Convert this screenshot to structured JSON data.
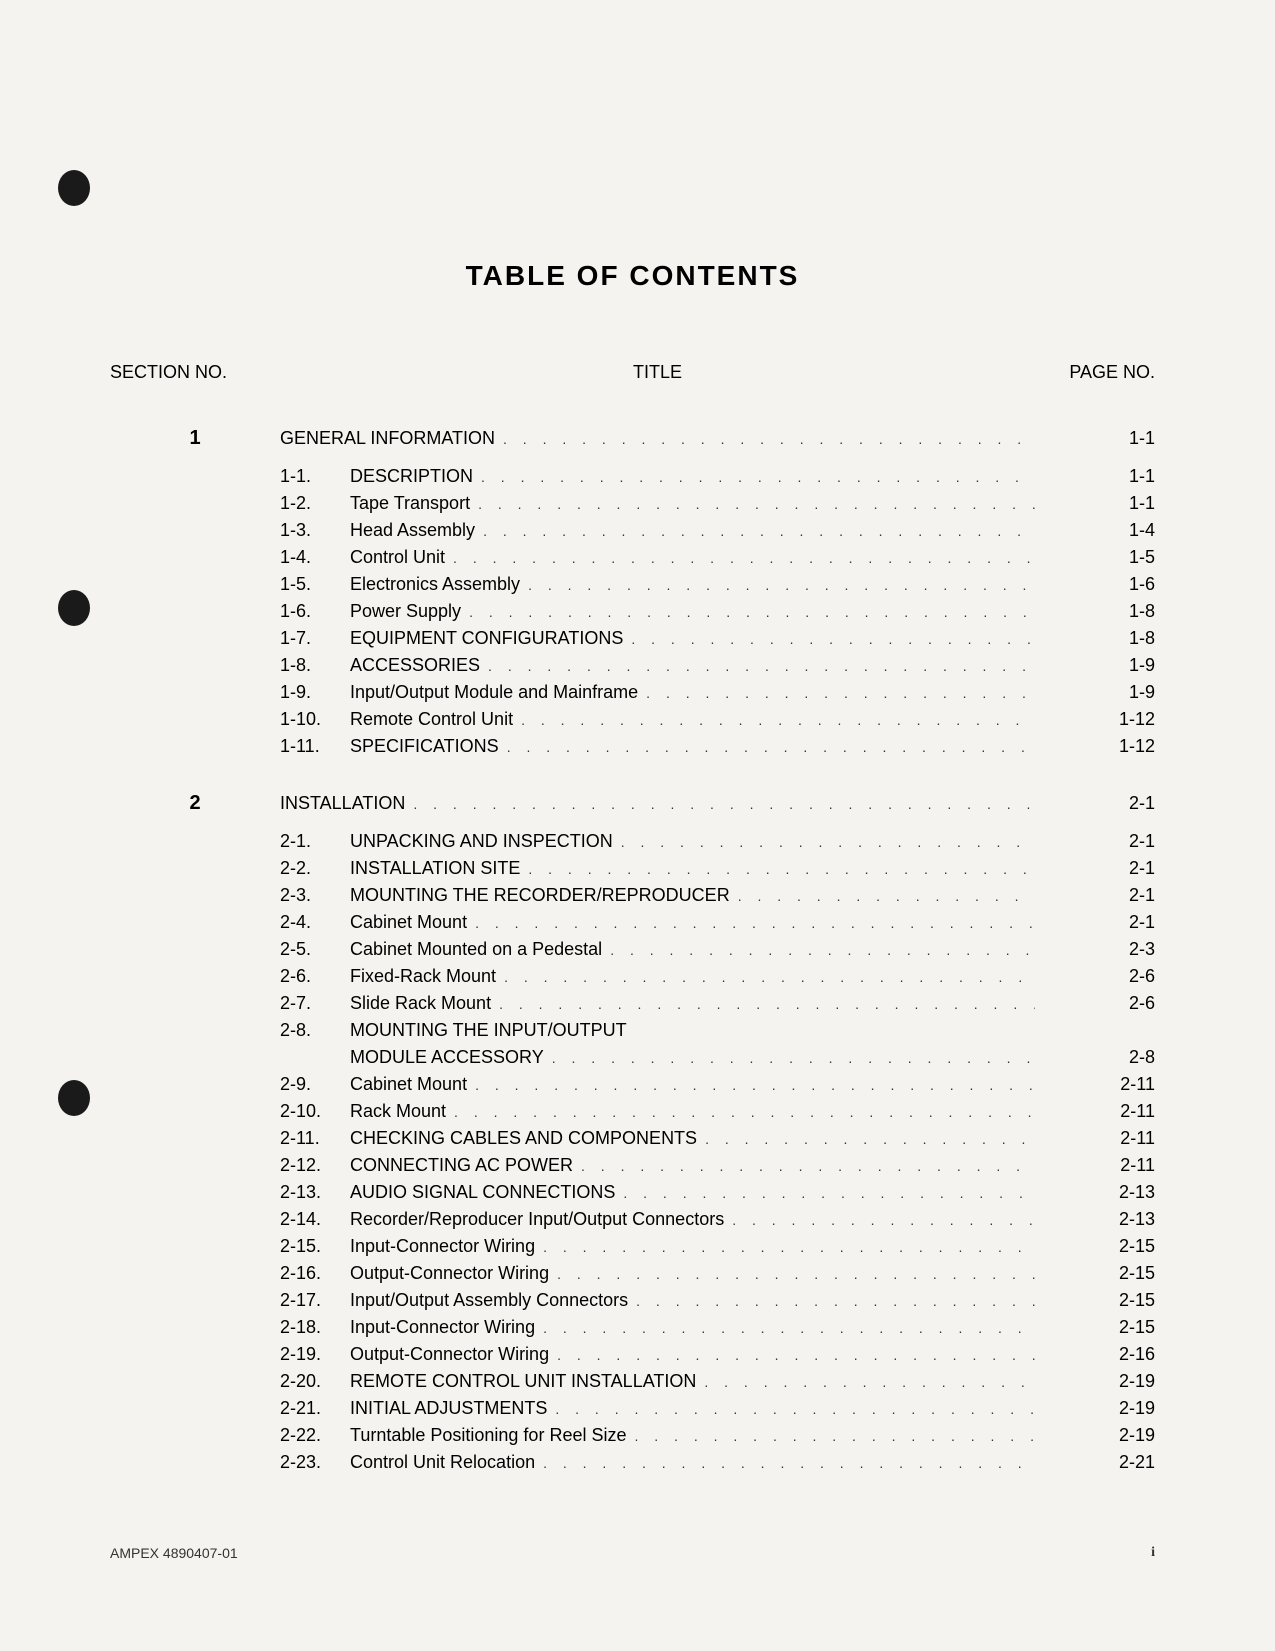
{
  "title": "TABLE OF CONTENTS",
  "headers": {
    "section": "SECTION NO.",
    "title": "TITLE",
    "page": "PAGE NO."
  },
  "sections": [
    {
      "num": "1",
      "title": "GENERAL INFORMATION",
      "page": "1-1",
      "subs": [
        {
          "num": "1-1.",
          "title": "DESCRIPTION",
          "page": "1-1"
        },
        {
          "num": "1-2.",
          "title": "Tape Transport",
          "page": "1-1"
        },
        {
          "num": "1-3.",
          "title": "Head Assembly",
          "page": "1-4"
        },
        {
          "num": "1-4.",
          "title": "Control Unit",
          "page": "1-5"
        },
        {
          "num": "1-5.",
          "title": "Electronics Assembly",
          "page": "1-6"
        },
        {
          "num": "1-6.",
          "title": "Power Supply",
          "page": "1-8"
        },
        {
          "num": "1-7.",
          "title": "EQUIPMENT CONFIGURATIONS",
          "page": "1-8"
        },
        {
          "num": "1-8.",
          "title": "ACCESSORIES",
          "page": "1-9"
        },
        {
          "num": "1-9.",
          "title": "Input/Output Module and Mainframe",
          "page": "1-9"
        },
        {
          "num": "1-10.",
          "title": "Remote Control Unit",
          "page": "1-12"
        },
        {
          "num": "1-11.",
          "title": "SPECIFICATIONS",
          "page": "1-12"
        }
      ]
    },
    {
      "num": "2",
      "title": "INSTALLATION",
      "page": "2-1",
      "subs": [
        {
          "num": "2-1.",
          "title": "UNPACKING AND INSPECTION",
          "page": "2-1"
        },
        {
          "num": "2-2.",
          "title": "INSTALLATION SITE",
          "page": "2-1"
        },
        {
          "num": "2-3.",
          "title": "MOUNTING THE RECORDER/REPRODUCER",
          "page": "2-1"
        },
        {
          "num": "2-4.",
          "title": "Cabinet Mount",
          "page": "2-1"
        },
        {
          "num": "2-5.",
          "title": "Cabinet Mounted on a Pedestal",
          "page": "2-3"
        },
        {
          "num": "2-6.",
          "title": "Fixed-Rack Mount",
          "page": "2-6"
        },
        {
          "num": "2-7.",
          "title": "Slide Rack Mount",
          "page": "2-6"
        },
        {
          "num": "2-8.",
          "title": "MOUNTING THE INPUT/OUTPUT",
          "cont": true
        },
        {
          "num": "",
          "title": "MODULE ACCESSORY",
          "page": "2-8"
        },
        {
          "num": "2-9.",
          "title": "Cabinet Mount",
          "page": "2-11"
        },
        {
          "num": "2-10.",
          "title": "Rack Mount",
          "page": "2-11"
        },
        {
          "num": "2-11.",
          "title": "CHECKING CABLES AND COMPONENTS",
          "page": "2-11"
        },
        {
          "num": "2-12.",
          "title": "CONNECTING AC POWER",
          "page": "2-11"
        },
        {
          "num": "2-13.",
          "title": "AUDIO SIGNAL CONNECTIONS",
          "page": "2-13"
        },
        {
          "num": "2-14.",
          "title": "Recorder/Reproducer Input/Output Connectors",
          "page": "2-13"
        },
        {
          "num": "2-15.",
          "title": "Input-Connector Wiring",
          "page": "2-15"
        },
        {
          "num": "2-16.",
          "title": "Output-Connector Wiring",
          "page": "2-15"
        },
        {
          "num": "2-17.",
          "title": "Input/Output Assembly Connectors",
          "page": "2-15"
        },
        {
          "num": "2-18.",
          "title": "Input-Connector Wiring",
          "page": "2-15"
        },
        {
          "num": "2-19.",
          "title": "Output-Connector Wiring",
          "page": "2-16"
        },
        {
          "num": "2-20.",
          "title": "REMOTE CONTROL UNIT INSTALLATION",
          "page": "2-19"
        },
        {
          "num": "2-21.",
          "title": "INITIAL ADJUSTMENTS",
          "page": "2-19"
        },
        {
          "num": "2-22.",
          "title": "Turntable Positioning for Reel Size",
          "page": "2-19"
        },
        {
          "num": "2-23.",
          "title": "Control Unit Relocation",
          "page": "2-21"
        }
      ]
    }
  ],
  "footer": {
    "left": "AMPEX 4890407-01",
    "right": "i"
  }
}
